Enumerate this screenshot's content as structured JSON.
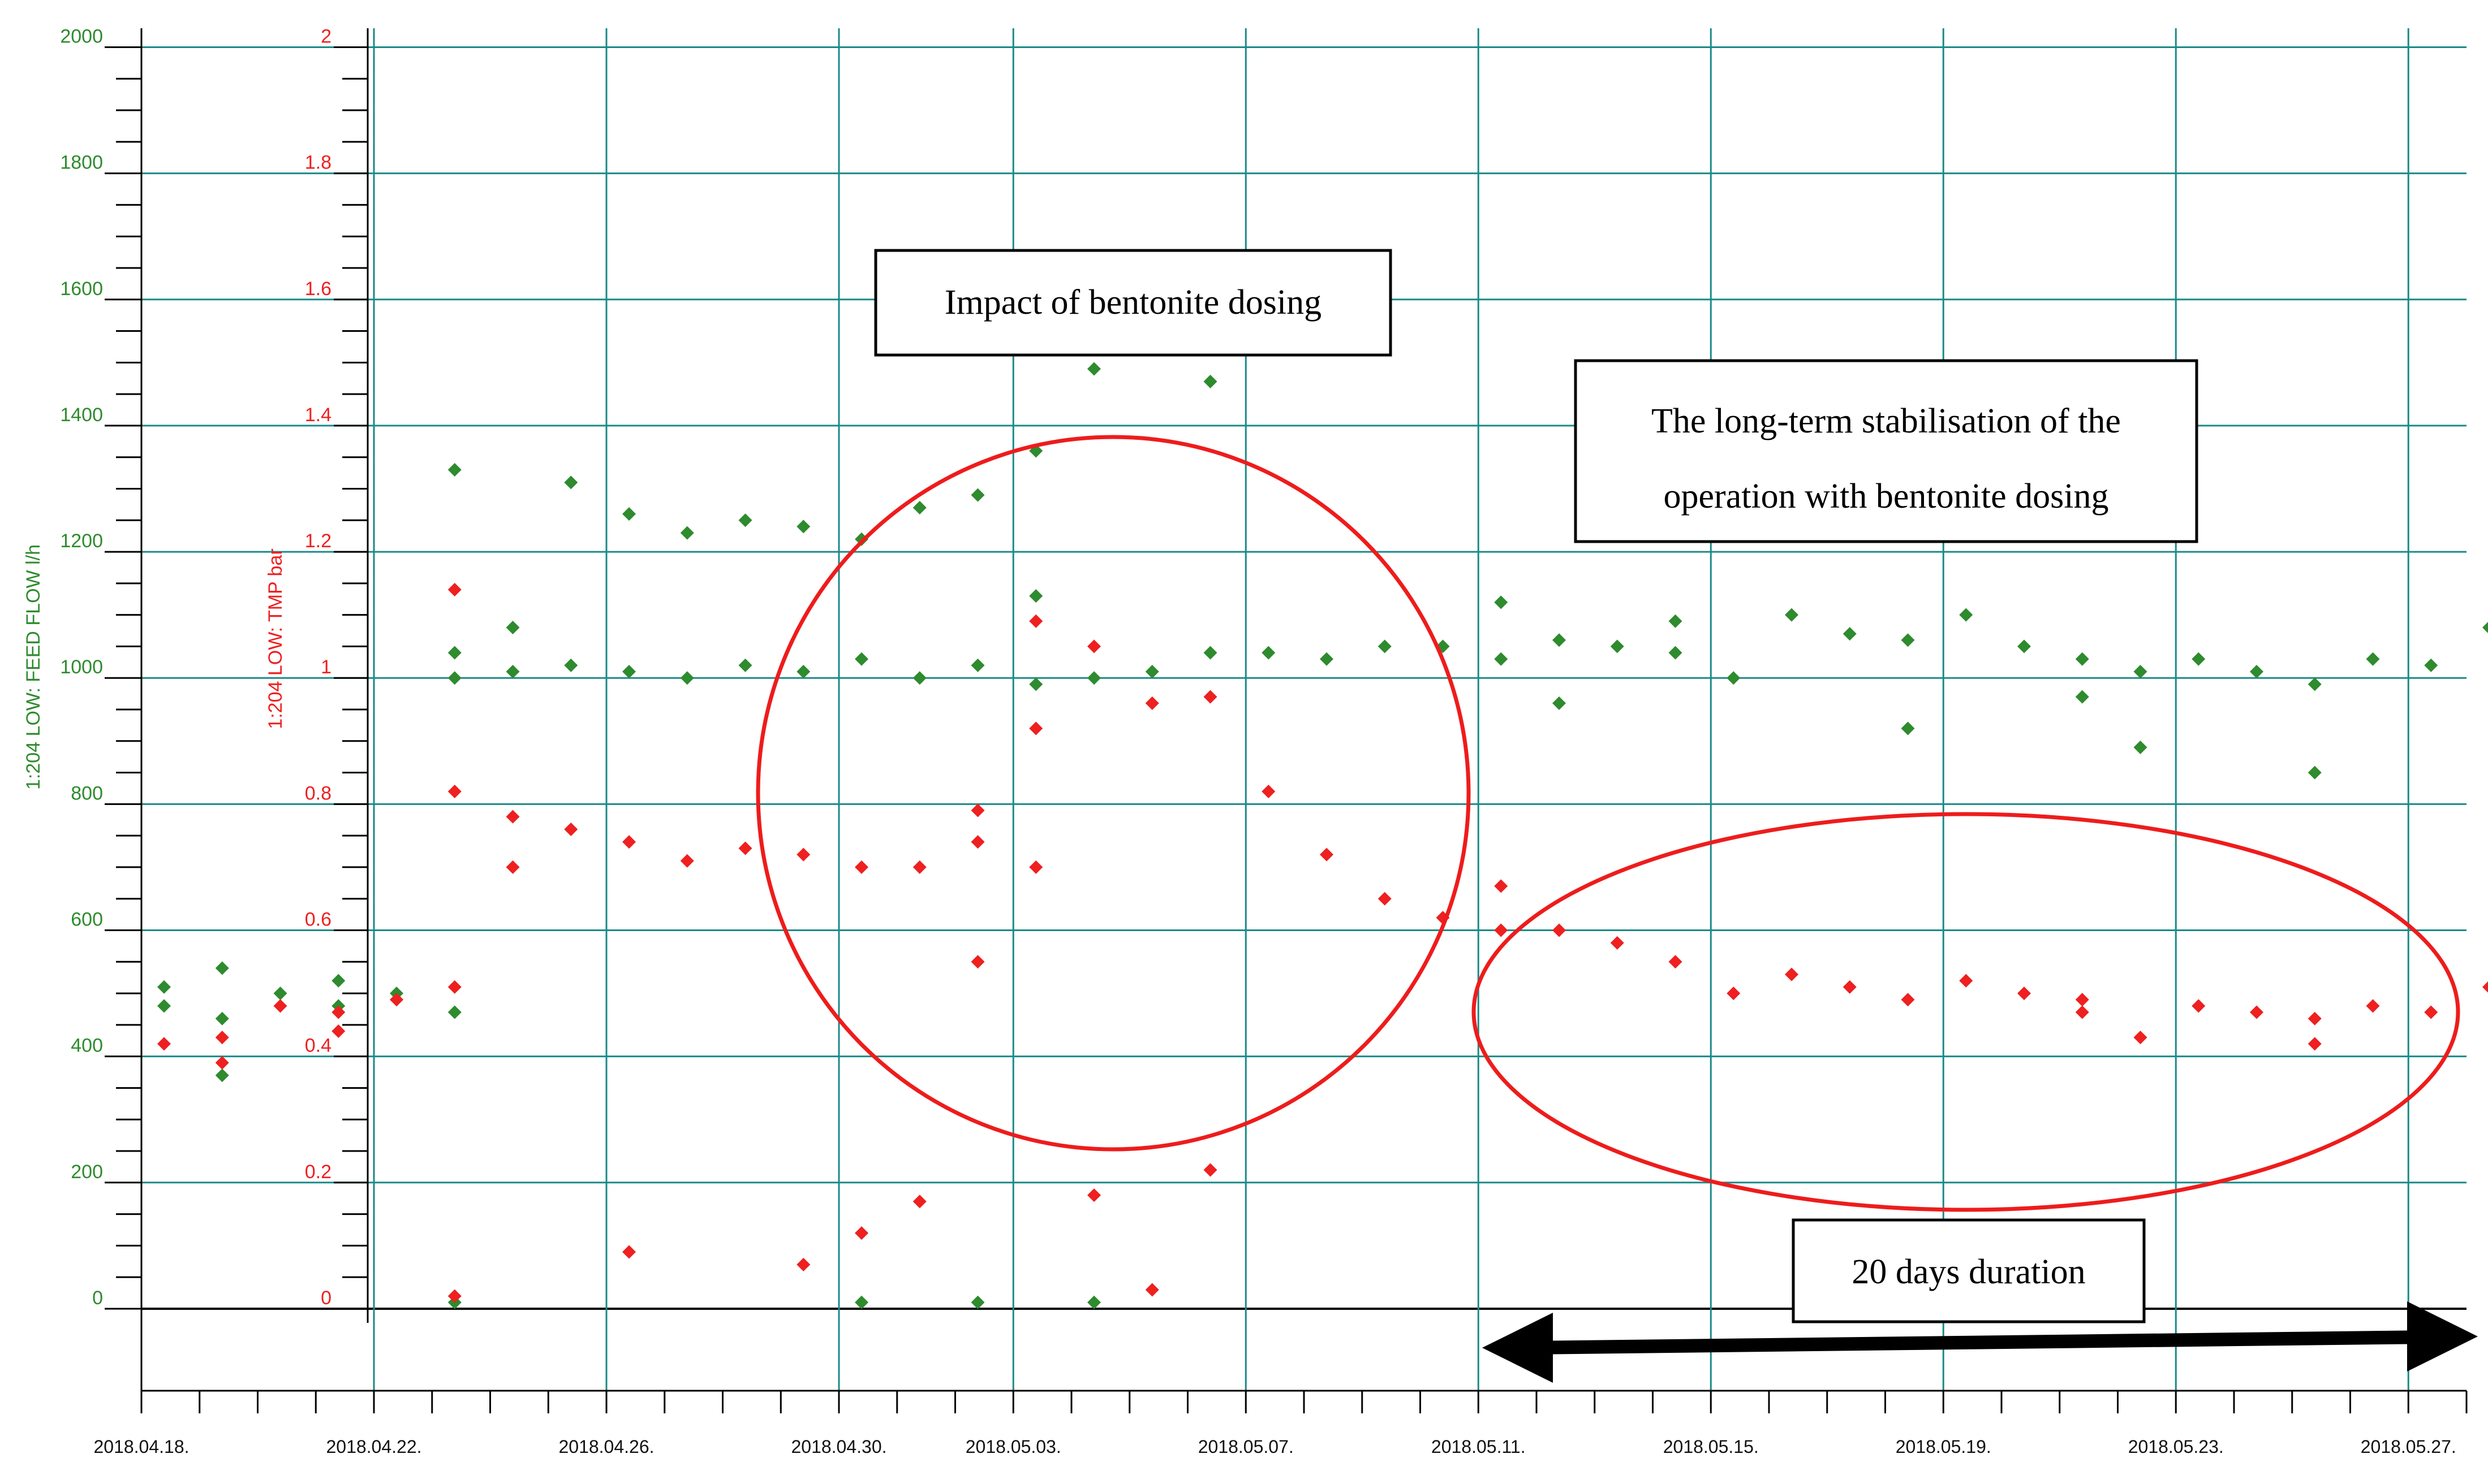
{
  "chart_data": {
    "type": "scatter",
    "y_left": {
      "label": "1:204 LOW: FEED FLOW l/h",
      "ticks": [
        "2000",
        "1800",
        "1600",
        "1400",
        "1200",
        "1000",
        "800",
        "600",
        "400",
        "200",
        "0"
      ],
      "range": [
        -130,
        2030
      ],
      "color": "#2e8b2e"
    },
    "y_right": {
      "label": "1:204 LOW: TMP bar",
      "ticks": [
        "2",
        "1.8",
        "1.6",
        "1.4",
        "1.2",
        "1",
        "0.8",
        "0.6",
        "0.4",
        "0.2",
        "0"
      ],
      "range": [
        -0.13,
        2.03
      ],
      "color": "#ee2020"
    },
    "x": {
      "start": "2018.04.18.",
      "end": "2018.05.28.",
      "tick_labels": [
        "2018.04.18.",
        "2018.04.22.",
        "2018.04.26.",
        "2018.04.30.",
        "2018.05.03.",
        "2018.05.07.",
        "2018.05.11.",
        "2018.05.15.",
        "2018.05.19.",
        "2018.05.23.",
        "2018.05.27."
      ]
    },
    "grid": true,
    "series": [
      {
        "name": "1:204 LOW: FEED FLOW l/h",
        "axis": "left",
        "color": "#2e8b2e",
        "points": [
          [
            "2018.04.18.",
            510
          ],
          [
            "2018.04.18.",
            480
          ],
          [
            "2018.04.19.",
            460
          ],
          [
            "2018.04.19.",
            370
          ],
          [
            "2018.04.19.",
            540
          ],
          [
            "2018.04.20.",
            500
          ],
          [
            "2018.04.21.",
            480
          ],
          [
            "2018.04.21.",
            520
          ],
          [
            "2018.04.22.",
            500
          ],
          [
            "2018.04.22.",
            490
          ],
          [
            "2018.04.23.",
            470
          ],
          [
            "2018.04.23.",
            1000
          ],
          [
            "2018.04.23.",
            1040
          ],
          [
            "2018.04.23.",
            1330
          ],
          [
            "2018.04.23.",
            10
          ],
          [
            "2018.04.24.",
            1080
          ],
          [
            "2018.04.24.",
            1010
          ],
          [
            "2018.04.25.",
            1020
          ],
          [
            "2018.04.25.",
            1310
          ],
          [
            "2018.04.26.",
            1010
          ],
          [
            "2018.04.26.",
            1260
          ],
          [
            "2018.04.27.",
            1000
          ],
          [
            "2018.04.27.",
            1230
          ],
          [
            "2018.04.28.",
            1020
          ],
          [
            "2018.04.28.",
            1250
          ],
          [
            "2018.04.29.",
            1010
          ],
          [
            "2018.04.29.",
            1240
          ],
          [
            "2018.04.30.",
            1030
          ],
          [
            "2018.04.30.",
            1220
          ],
          [
            "2018.04.30.",
            10
          ],
          [
            "2018.05.01.",
            1000
          ],
          [
            "2018.05.01.",
            1270
          ],
          [
            "2018.05.02.",
            1020
          ],
          [
            "2018.05.02.",
            1290
          ],
          [
            "2018.05.02.",
            10
          ],
          [
            "2018.05.03.",
            1130
          ],
          [
            "2018.05.03.",
            990
          ],
          [
            "2018.05.03.",
            1360
          ],
          [
            "2018.05.04.",
            1490
          ],
          [
            "2018.05.04.",
            1000
          ],
          [
            "2018.05.04.",
            10
          ],
          [
            "2018.05.05.",
            1010
          ],
          [
            "2018.05.06.",
            1040
          ],
          [
            "2018.05.06.",
            1470
          ],
          [
            "2018.05.07.",
            1040
          ],
          [
            "2018.05.08.",
            1030
          ],
          [
            "2018.05.09.",
            1050
          ],
          [
            "2018.05.10.",
            1050
          ],
          [
            "2018.05.11.",
            1030
          ],
          [
            "2018.05.11.",
            1120
          ],
          [
            "2018.05.12.",
            1060
          ],
          [
            "2018.05.12.",
            960
          ],
          [
            "2018.05.13.",
            1050
          ],
          [
            "2018.05.14.",
            1040
          ],
          [
            "2018.05.14.",
            1090
          ],
          [
            "2018.05.15.",
            1000
          ],
          [
            "2018.05.16.",
            1100
          ],
          [
            "2018.05.17.",
            1070
          ],
          [
            "2018.05.18.",
            1060
          ],
          [
            "2018.05.18.",
            920
          ],
          [
            "2018.05.19.",
            1100
          ],
          [
            "2018.05.20.",
            1050
          ],
          [
            "2018.05.21.",
            1030
          ],
          [
            "2018.05.21.",
            970
          ],
          [
            "2018.05.22.",
            1010
          ],
          [
            "2018.05.22.",
            890
          ],
          [
            "2018.05.23.",
            1030
          ],
          [
            "2018.05.24.",
            1010
          ],
          [
            "2018.05.25.",
            990
          ],
          [
            "2018.05.25.",
            850
          ],
          [
            "2018.05.26.",
            1030
          ],
          [
            "2018.05.27.",
            1020
          ],
          [
            "2018.05.28.",
            1080
          ]
        ]
      },
      {
        "name": "1:204 LOW: TMP bar",
        "axis": "right",
        "color": "#ee2020",
        "points": [
          [
            "2018.04.18.",
            0.42
          ],
          [
            "2018.04.19.",
            0.43
          ],
          [
            "2018.04.19.",
            0.39
          ],
          [
            "2018.04.20.",
            0.48
          ],
          [
            "2018.04.21.",
            0.47
          ],
          [
            "2018.04.21.",
            0.44
          ],
          [
            "2018.04.22.",
            0.49
          ],
          [
            "2018.04.23.",
            0.51
          ],
          [
            "2018.04.23.",
            1.14
          ],
          [
            "2018.04.23.",
            0.82
          ],
          [
            "2018.04.23.",
            0.02
          ],
          [
            "2018.04.24.",
            0.7
          ],
          [
            "2018.04.24.",
            0.78
          ],
          [
            "2018.04.25.",
            0.76
          ],
          [
            "2018.04.26.",
            0.74
          ],
          [
            "2018.04.26.",
            0.09
          ],
          [
            "2018.04.27.",
            0.71
          ],
          [
            "2018.04.28.",
            0.73
          ],
          [
            "2018.04.29.",
            0.72
          ],
          [
            "2018.04.29.",
            0.07
          ],
          [
            "2018.04.30.",
            0.7
          ],
          [
            "2018.04.30.",
            0.12
          ],
          [
            "2018.05.01.",
            0.7
          ],
          [
            "2018.05.01.",
            0.17
          ],
          [
            "2018.05.02.",
            0.79
          ],
          [
            "2018.05.02.",
            0.74
          ],
          [
            "2018.05.02.",
            0.55
          ],
          [
            "2018.05.03.",
            0.7
          ],
          [
            "2018.05.03.",
            0.92
          ],
          [
            "2018.05.03.",
            1.09
          ],
          [
            "2018.05.04.",
            1.05
          ],
          [
            "2018.05.04.",
            0.18
          ],
          [
            "2018.05.05.",
            0.96
          ],
          [
            "2018.05.05.",
            0.03
          ],
          [
            "2018.05.06.",
            0.97
          ],
          [
            "2018.05.06.",
            0.22
          ],
          [
            "2018.05.07.",
            0.82
          ],
          [
            "2018.05.08.",
            0.72
          ],
          [
            "2018.05.09.",
            0.65
          ],
          [
            "2018.05.10.",
            0.62
          ],
          [
            "2018.05.11.",
            0.6
          ],
          [
            "2018.05.11.",
            0.67
          ],
          [
            "2018.05.12.",
            0.6
          ],
          [
            "2018.05.13.",
            0.58
          ],
          [
            "2018.05.14.",
            0.55
          ],
          [
            "2018.05.15.",
            0.5
          ],
          [
            "2018.05.16.",
            0.53
          ],
          [
            "2018.05.17.",
            0.51
          ],
          [
            "2018.05.18.",
            0.49
          ],
          [
            "2018.05.19.",
            0.52
          ],
          [
            "2018.05.20.",
            0.5
          ],
          [
            "2018.05.21.",
            0.47
          ],
          [
            "2018.05.21.",
            0.49
          ],
          [
            "2018.05.22.",
            0.43
          ],
          [
            "2018.05.23.",
            0.48
          ],
          [
            "2018.05.24.",
            0.47
          ],
          [
            "2018.05.25.",
            0.46
          ],
          [
            "2018.05.25.",
            0.42
          ],
          [
            "2018.05.26.",
            0.48
          ],
          [
            "2018.05.27.",
            0.47
          ],
          [
            "2018.05.28.",
            0.51
          ]
        ]
      }
    ],
    "annotations": [
      "Impact of bentonite dosing",
      "The long-term stabilisation of the",
      "operation with bentonite dosing",
      "20 days duration"
    ]
  }
}
